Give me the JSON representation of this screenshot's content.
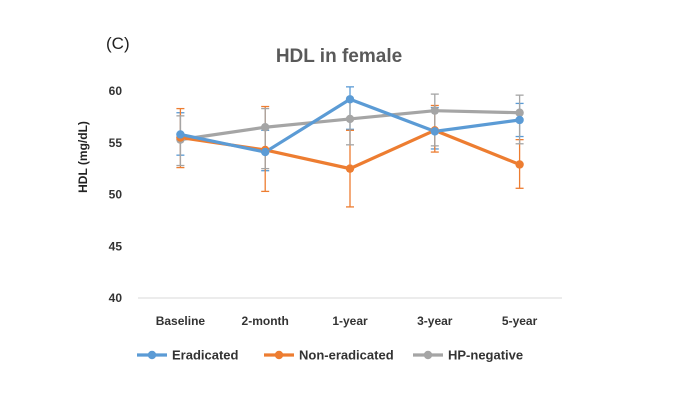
{
  "panel_label": "(C)",
  "chart_data": {
    "type": "line",
    "title": "HDL in female",
    "xlabel": "",
    "ylabel": "HDL (mg/dL)",
    "categories": [
      "Baseline",
      "2-month",
      "1-year",
      "3-year",
      "5-year"
    ],
    "ylim": [
      40,
      60
    ],
    "yticks": [
      40,
      45,
      50,
      55,
      60
    ],
    "grid": false,
    "legend_position": "bottom",
    "series": [
      {
        "name": "Eradicated",
        "color": "#5B9BD5",
        "values": [
          55.8,
          54.1,
          59.2,
          56.1,
          57.2
        ],
        "err_low": [
          53.8,
          52.3,
          56.3,
          54.4,
          55.6
        ],
        "err_high": [
          57.9,
          56.2,
          60.4,
          58.4,
          58.8
        ]
      },
      {
        "name": "Non-eradicated",
        "color": "#ED7D31",
        "values": [
          55.5,
          54.3,
          52.5,
          56.2,
          52.9
        ],
        "err_low": [
          52.6,
          50.3,
          48.8,
          54.1,
          50.6
        ],
        "err_high": [
          58.3,
          58.5,
          56.2,
          58.6,
          55.3
        ]
      },
      {
        "name": "HP-negative",
        "color": "#A5A5A5",
        "values": [
          55.3,
          56.5,
          57.3,
          58.1,
          57.9
        ],
        "err_low": [
          52.8,
          52.5,
          54.8,
          54.7,
          54.9
        ],
        "err_high": [
          57.6,
          58.3,
          59.0,
          59.7,
          59.6
        ]
      }
    ]
  }
}
